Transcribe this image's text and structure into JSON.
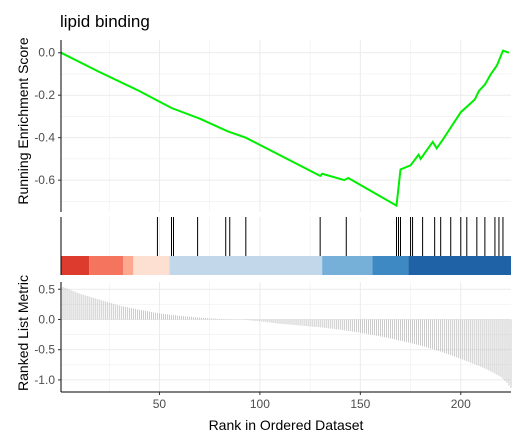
{
  "chart_data": {
    "type": "line",
    "title": "lipid binding",
    "xlabel": "Rank in Ordered Dataset",
    "x_ticks": [
      50,
      100,
      150,
      200
    ],
    "x_range": [
      1,
      225
    ],
    "colors": {
      "curve": "#00ee00",
      "hit": "#000000",
      "metric": "#b5b5b5",
      "grid": "#ebebeb",
      "axis": "#000000"
    },
    "panels": [
      {
        "id": "enrichment",
        "ylabel": "Running Enrichment Score",
        "ylim": [
          -0.75,
          0.06
        ],
        "y_ticks": [
          0.0,
          -0.2,
          -0.4,
          -0.6
        ],
        "y_tick_labels": [
          "0.0",
          "-0.2",
          "-0.4",
          "-0.6"
        ],
        "series": {
          "x": [
            1,
            20,
            40,
            56,
            70,
            84,
            93,
            130,
            131,
            142,
            144,
            168,
            170,
            175,
            179,
            180,
            186,
            188,
            191,
            200,
            207,
            209,
            212,
            215,
            218,
            221,
            224
          ],
          "y": [
            0.0,
            -0.09,
            -0.18,
            -0.26,
            -0.31,
            -0.37,
            -0.4,
            -0.58,
            -0.57,
            -0.6,
            -0.59,
            -0.72,
            -0.55,
            -0.53,
            -0.48,
            -0.5,
            -0.42,
            -0.45,
            -0.41,
            -0.28,
            -0.22,
            -0.18,
            -0.15,
            -0.1,
            -0.06,
            0.01,
            0.0
          ]
        }
      },
      {
        "id": "hits",
        "hit_positions": [
          49,
          56,
          57,
          69,
          83,
          85,
          93,
          130,
          143,
          168,
          169,
          170,
          175,
          176,
          181,
          187,
          190,
          195,
          200,
          203,
          208,
          212,
          217,
          219,
          221
        ],
        "color_bar": [
          {
            "from": 1,
            "to": 15,
            "color": "#de3b2f"
          },
          {
            "from": 15,
            "to": 32,
            "color": "#f4745e"
          },
          {
            "from": 32,
            "to": 37,
            "color": "#fca98f"
          },
          {
            "from": 37,
            "to": 55,
            "color": "#fde0d2"
          },
          {
            "from": 55,
            "to": 131,
            "color": "#c2d8ea"
          },
          {
            "from": 131,
            "to": 156,
            "color": "#76afd8"
          },
          {
            "from": 156,
            "to": 174,
            "color": "#3e89c3"
          },
          {
            "from": 174,
            "to": 225,
            "color": "#1f62a6"
          }
        ]
      },
      {
        "id": "metric",
        "ylabel": "Ranked List Metric",
        "ylim": [
          -1.2,
          0.62
        ],
        "y_ticks": [
          0.5,
          0.0,
          -0.5,
          -1.0
        ],
        "y_tick_labels": [
          "0.5",
          "0.0",
          "-0.5",
          "-1.0"
        ],
        "series": {
          "x": [
            1,
            5,
            10,
            20,
            30,
            40,
            50,
            60,
            70,
            80,
            90,
            100,
            110,
            120,
            130,
            140,
            150,
            160,
            170,
            180,
            190,
            200,
            210,
            215,
            220,
            223,
            225
          ],
          "y": [
            0.55,
            0.5,
            0.43,
            0.33,
            0.23,
            0.16,
            0.1,
            0.06,
            0.03,
            0.01,
            0.0,
            -0.03,
            -0.07,
            -0.1,
            -0.13,
            -0.17,
            -0.22,
            -0.28,
            -0.35,
            -0.43,
            -0.53,
            -0.65,
            -0.78,
            -0.86,
            -0.95,
            -1.05,
            -1.13
          ]
        }
      }
    ]
  }
}
